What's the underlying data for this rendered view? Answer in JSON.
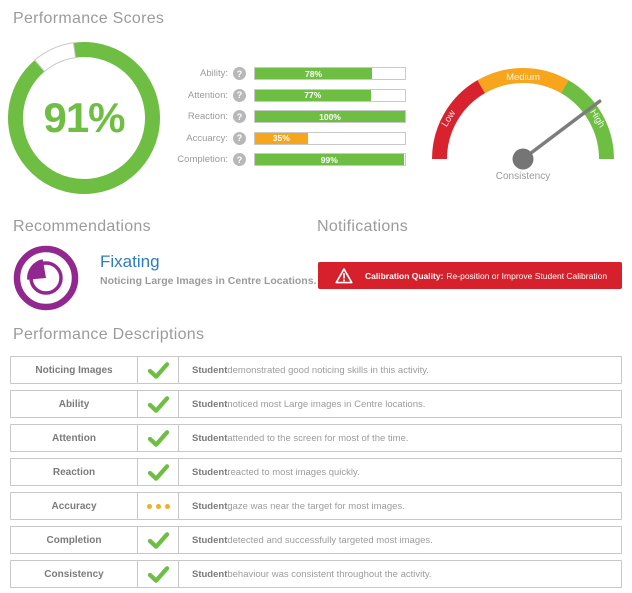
{
  "colors": {
    "green": "#6fbe44",
    "orange": "#f7a51d",
    "red": "#d8232e",
    "banner_red": "#d6202b",
    "purple": "#92278f",
    "blue": "#2d7cbe",
    "dots": "#f2b01e"
  },
  "icons": {
    "help": "?"
  },
  "sections": {
    "scores_title": "Performance Scores",
    "recommendations_title": "Recommendations",
    "notifications_title": "Notifications",
    "descriptions_title": "Performance Descriptions"
  },
  "donut": {
    "value": 91,
    "label": "91%",
    "color": "#6fbe44"
  },
  "bars": [
    {
      "label": "Ability:",
      "value": 78,
      "display": "78%",
      "color": "#6fbe44"
    },
    {
      "label": "Attention:",
      "value": 77,
      "display": "77%",
      "color": "#6fbe44"
    },
    {
      "label": "Reaction:",
      "value": 100,
      "display": "100%",
      "color": "#6fbe44"
    },
    {
      "label": "Accuarcy:",
      "value": 35,
      "display": "35%",
      "color": "#f7a51d"
    },
    {
      "label": "Completion:",
      "value": 99,
      "display": "99%",
      "color": "#6fbe44"
    }
  ],
  "gauge": {
    "caption": "Consistency",
    "needle_angle_deg": 37,
    "segments": [
      {
        "name": "Low",
        "color": "#d8232e"
      },
      {
        "name": "Medium",
        "color": "#f7a51d"
      },
      {
        "name": "High",
        "color": "#6fbe44"
      }
    ]
  },
  "recommendation": {
    "title": "Fixating",
    "subtitle": "Noticing Large Images in Centre Locations."
  },
  "notification": {
    "bold": "Calibration Quality:",
    "text": "Re-position or Improve Student Calibration",
    "bg": "#d6202b"
  },
  "table": {
    "rows": [
      {
        "label": "Noticing Images",
        "status": "check",
        "subject": "Student",
        "description": " demonstrated good noticing skills in this activity."
      },
      {
        "label": "Ability",
        "status": "check",
        "subject": "Student",
        "description": " noticed most Large images in Centre locations."
      },
      {
        "label": "Attention",
        "status": "check",
        "subject": "Student",
        "description": " attended to the screen for most of the time."
      },
      {
        "label": "Reaction",
        "status": "check",
        "subject": "Student",
        "description": " reacted to most images quickly."
      },
      {
        "label": "Accuracy",
        "status": "dots",
        "subject": "Student",
        "description": " gaze was near the target for most images."
      },
      {
        "label": "Completion",
        "status": "check",
        "subject": "Student",
        "description": " detected and successfully targeted most images."
      },
      {
        "label": "Consistency",
        "status": "check",
        "subject": "Student",
        "description": " behaviour was consistent throughout the activity."
      }
    ]
  }
}
